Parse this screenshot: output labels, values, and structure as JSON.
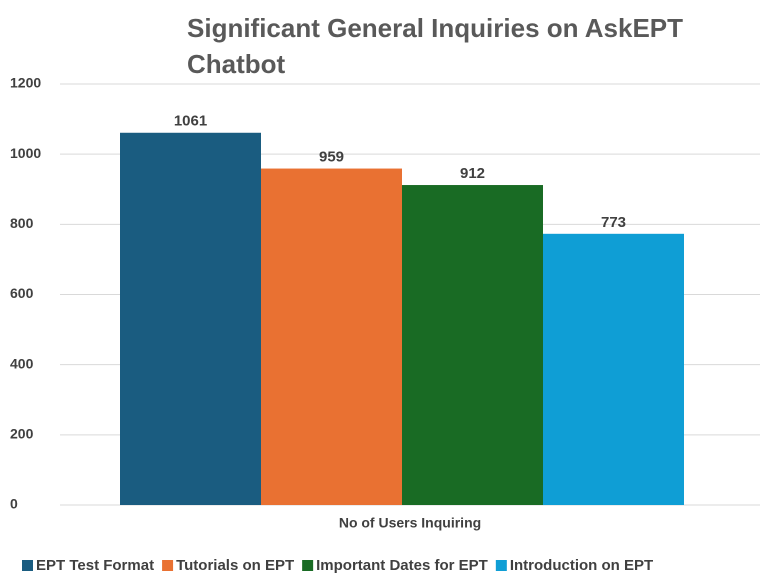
{
  "chart_data": {
    "type": "bar",
    "title": "Significant General Inquiries on AskEPT Chatbot",
    "categories": [
      "No of Users Inquiring"
    ],
    "series": [
      {
        "name": "EPT Test Format",
        "color": "#1a5c80",
        "values": [
          1061
        ]
      },
      {
        "name": "Tutorials on EPT",
        "color": "#e97132",
        "values": [
          959
        ]
      },
      {
        "name": "Important Dates for EPT",
        "color": "#196b24",
        "values": [
          912
        ]
      },
      {
        "name": "Introduction on EPT",
        "color": "#0f9ed5",
        "values": [
          773
        ]
      }
    ],
    "ylim": [
      0,
      1200
    ],
    "yticks": [
      0,
      200,
      400,
      600,
      800,
      1000,
      1200
    ],
    "grid": true,
    "legend": "bottom"
  }
}
